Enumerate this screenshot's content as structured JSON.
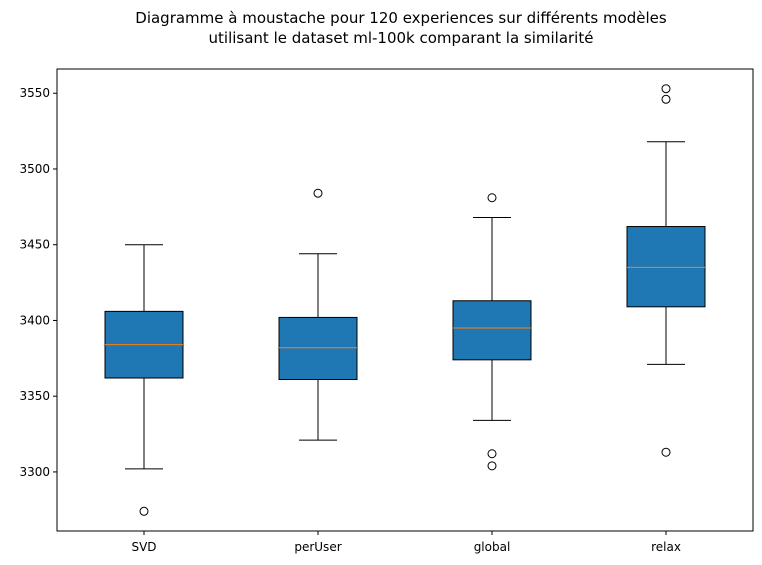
{
  "chart_data": {
    "type": "boxplot",
    "title_lines": [
      "Diagramme à moustache pour 120 experiences sur différents modèles",
      "utilisant le dataset ml-100k comparant la similarité"
    ],
    "xlabel": "",
    "ylabel": "",
    "ylim": [
      3261,
      3566
    ],
    "yticks": [
      3300,
      3350,
      3400,
      3450,
      3500,
      3550
    ],
    "grid": false,
    "box_color": "#1f77b4",
    "median_color": "#ff7f0e",
    "series": [
      {
        "name": "SVD",
        "whisker_low": 3302,
        "q1": 3362,
        "median": 3384,
        "q3": 3406,
        "whisker_high": 3450,
        "outliers": [
          3274
        ]
      },
      {
        "name": "perUser",
        "whisker_low": 3321,
        "q1": 3361,
        "median": 3382,
        "q3": 3402,
        "whisker_high": 3444,
        "outliers": [
          3484
        ]
      },
      {
        "name": "global",
        "whisker_low": 3334,
        "q1": 3374,
        "median": 3395,
        "q3": 3413,
        "whisker_high": 3468,
        "outliers": [
          3481,
          3312,
          3304
        ]
      },
      {
        "name": "relax",
        "whisker_low": 3371,
        "q1": 3409,
        "median": 3435,
        "q3": 3462,
        "whisker_high": 3518,
        "outliers": [
          3553,
          3546,
          3313
        ]
      }
    ]
  }
}
